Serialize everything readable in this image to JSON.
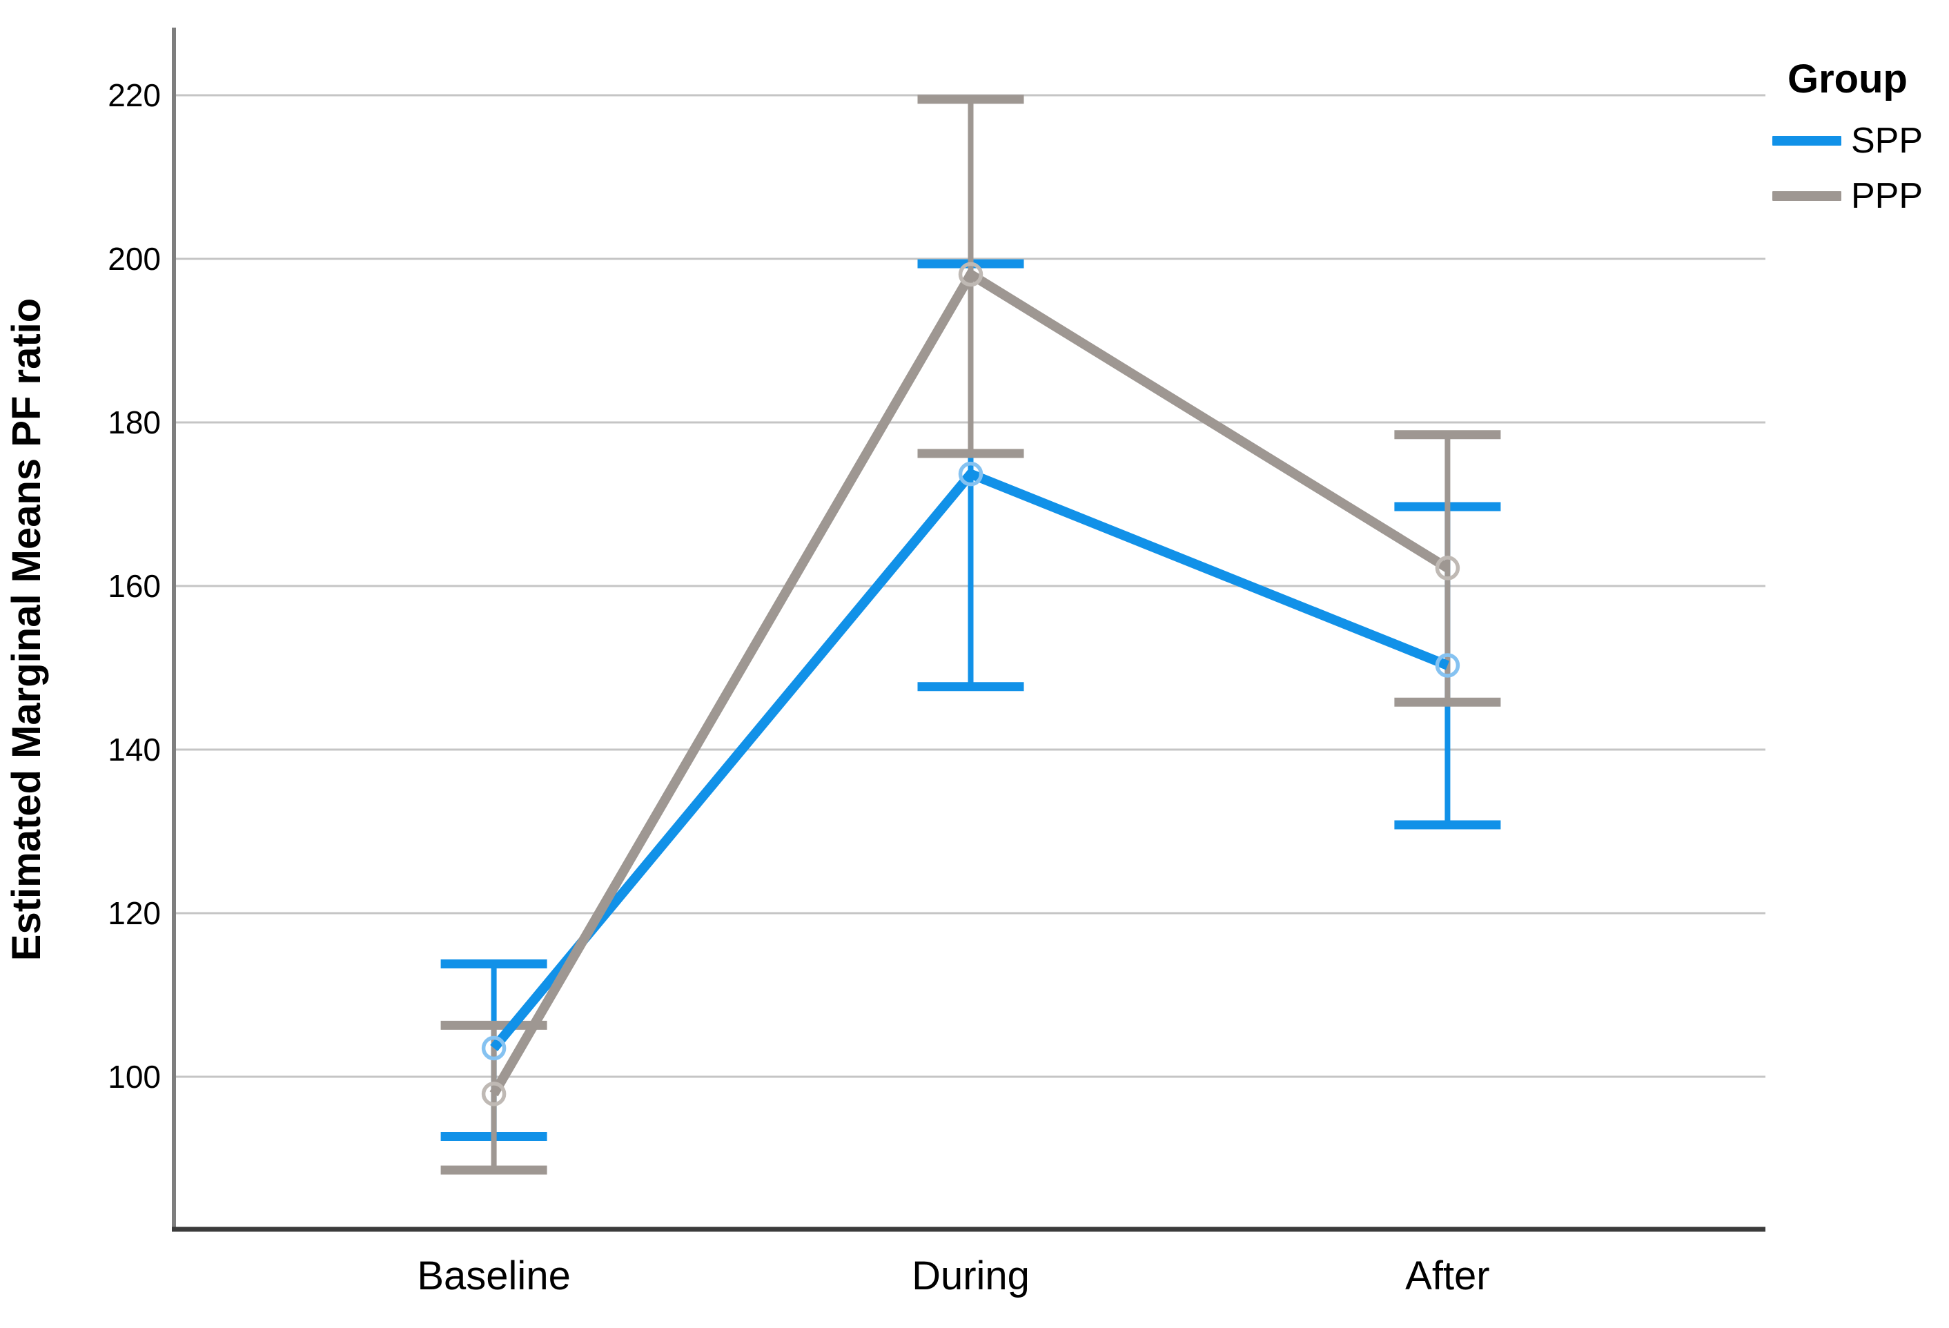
{
  "chart_data": {
    "type": "line",
    "title": "",
    "xlabel": "",
    "ylabel": "Estimated Marginal Means PF ratio",
    "categories": [
      "Baseline",
      "During",
      "After"
    ],
    "series": [
      {
        "name": "SPP",
        "color": "#1191E8",
        "marker": "open-circle",
        "marker_ring_color": "#85C2F1",
        "means": [
          103.5,
          173.7,
          150.3
        ],
        "ci_low": [
          92.7,
          147.7,
          130.8
        ],
        "ci_high": [
          113.8,
          199.4,
          169.7
        ]
      },
      {
        "name": "PPP",
        "color": "#9E9792",
        "marker": "open-circle",
        "marker_ring_color": "#BFB9B4",
        "means": [
          97.9,
          198.1,
          162.2
        ],
        "ci_low": [
          88.6,
          176.2,
          145.8
        ],
        "ci_high": [
          106.3,
          219.5,
          178.5
        ]
      }
    ],
    "yticks": [
      100,
      120,
      140,
      160,
      180,
      200,
      220
    ],
    "ylim": [
      81.4,
      228.3
    ],
    "grid": "horizontal",
    "error_bars": true,
    "legend_title": "Group",
    "legend_position": "top-right",
    "colors": {
      "gridline": "#C5C5C5",
      "y_axis_line": "#7E7E7E",
      "x_axis_line": "#3B3B3B",
      "text": "#000000"
    }
  }
}
